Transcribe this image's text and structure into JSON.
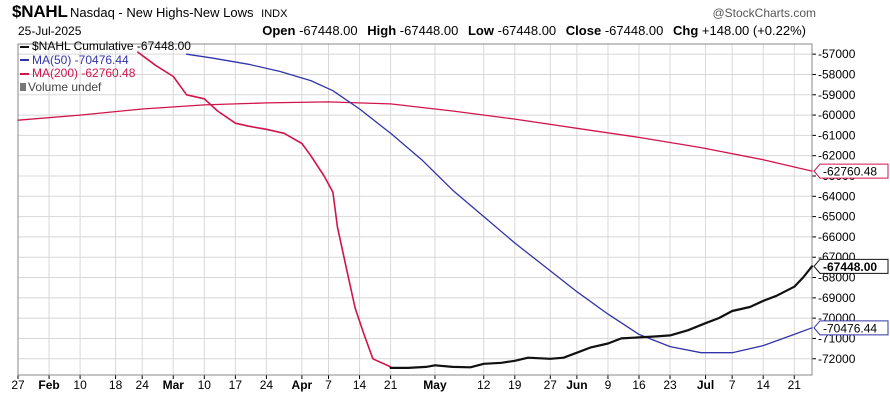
{
  "header": {
    "symbol": "$NAHL",
    "description": "Nasdaq - New Highs-New Lows",
    "exchange": "INDX",
    "brand": "@StockCharts.com",
    "date": "25-Jul-2025",
    "open_label": "Open",
    "open_value": "-67448.00",
    "high_label": "High",
    "high_value": "-67448.00",
    "low_label": "Low",
    "low_value": "-67448.00",
    "close_label": "Close",
    "close_value": "-67448.00",
    "chg_label": "Chg",
    "chg_value": "+148.00 (+0.22%)"
  },
  "legend": {
    "price": "$NAHL Cumulative -67448.00",
    "ma50": "MA(50) -70476.44",
    "ma200": "MA(200) -62760.48",
    "volume": "Volume undef"
  },
  "colors": {
    "price": "#111111",
    "ma50": "#3333aa",
    "ma200": "#d0144c",
    "grid": "#d8d8d8",
    "axis_text": "#000000"
  },
  "chart_data": {
    "type": "line",
    "x_start": "2025-01-27",
    "x_end": "2025-07-25",
    "ylim": [
      -72800,
      -56500
    ],
    "yticks": [
      -57000,
      -58000,
      -59000,
      -60000,
      -61000,
      -62000,
      -63000,
      -64000,
      -65000,
      -66000,
      -67000,
      -68000,
      -69000,
      -70000,
      -71000,
      -72000
    ],
    "ytick_labels": [
      "-57000",
      "-58000",
      "-59000",
      "-60000",
      "-61000",
      "-62000",
      "-63000",
      "-64000",
      "-65000",
      "-66000",
      "-67000",
      "-68000",
      "-69000",
      "-70000",
      "-71000",
      "-72000"
    ],
    "xticks": [
      {
        "date": "2025-01-27",
        "label": "27",
        "bold": false
      },
      {
        "date": "2025-02-03",
        "label": "Feb",
        "bold": true
      },
      {
        "date": "2025-02-10",
        "label": "10",
        "bold": false
      },
      {
        "date": "2025-02-18",
        "label": "18",
        "bold": false
      },
      {
        "date": "2025-02-24",
        "label": "24",
        "bold": false
      },
      {
        "date": "2025-03-03",
        "label": "Mar",
        "bold": true
      },
      {
        "date": "2025-03-10",
        "label": "10",
        "bold": false
      },
      {
        "date": "2025-03-17",
        "label": "17",
        "bold": false
      },
      {
        "date": "2025-03-24",
        "label": "24",
        "bold": false
      },
      {
        "date": "2025-04-01",
        "label": "Apr",
        "bold": true
      },
      {
        "date": "2025-04-07",
        "label": "7",
        "bold": false
      },
      {
        "date": "2025-04-14",
        "label": "14",
        "bold": false
      },
      {
        "date": "2025-04-21",
        "label": "21",
        "bold": false
      },
      {
        "date": "2025-05-01",
        "label": "May",
        "bold": true
      },
      {
        "date": "2025-05-12",
        "label": "12",
        "bold": false
      },
      {
        "date": "2025-05-19",
        "label": "19",
        "bold": false
      },
      {
        "date": "2025-05-27",
        "label": "27",
        "bold": false
      },
      {
        "date": "2025-06-02",
        "label": "Jun",
        "bold": true
      },
      {
        "date": "2025-06-09",
        "label": "9",
        "bold": false
      },
      {
        "date": "2025-06-16",
        "label": "16",
        "bold": false
      },
      {
        "date": "2025-06-23",
        "label": "23",
        "bold": false
      },
      {
        "date": "2025-07-01",
        "label": "Jul",
        "bold": true
      },
      {
        "date": "2025-07-07",
        "label": "7",
        "bold": false
      },
      {
        "date": "2025-07-14",
        "label": "14",
        "bold": false
      },
      {
        "date": "2025-07-21",
        "label": "21",
        "bold": false
      }
    ],
    "grid": true,
    "series": [
      {
        "name": "$NAHL Cumulative",
        "key": "price",
        "points": [
          [
            "2025-04-21",
            -72450
          ],
          [
            "2025-04-25",
            -72450
          ],
          [
            "2025-04-29",
            -72400
          ],
          [
            "2025-05-01",
            -72320
          ],
          [
            "2025-05-05",
            -72400
          ],
          [
            "2025-05-09",
            -72420
          ],
          [
            "2025-05-12",
            -72250
          ],
          [
            "2025-05-16",
            -72200
          ],
          [
            "2025-05-19",
            -72100
          ],
          [
            "2025-05-22",
            -71950
          ],
          [
            "2025-05-27",
            -72000
          ],
          [
            "2025-05-30",
            -71950
          ],
          [
            "2025-06-02",
            -71700
          ],
          [
            "2025-06-05",
            -71450
          ],
          [
            "2025-06-09",
            -71250
          ],
          [
            "2025-06-12",
            -71000
          ],
          [
            "2025-06-16",
            -70950
          ],
          [
            "2025-06-20",
            -70900
          ],
          [
            "2025-06-23",
            -70850
          ],
          [
            "2025-06-27",
            -70600
          ],
          [
            "2025-07-01",
            -70250
          ],
          [
            "2025-07-04",
            -70000
          ],
          [
            "2025-07-07",
            -69650
          ],
          [
            "2025-07-11",
            -69450
          ],
          [
            "2025-07-14",
            -69150
          ],
          [
            "2025-07-17",
            -68900
          ],
          [
            "2025-07-21",
            -68450
          ],
          [
            "2025-07-23",
            -68000
          ],
          [
            "2025-07-25",
            -67448
          ]
        ]
      },
      {
        "name": "MA(200)",
        "key": "ma200_early",
        "points": [
          [
            "2025-02-23",
            -56900
          ],
          [
            "2025-02-27",
            -57550
          ],
          [
            "2025-03-03",
            -58100
          ],
          [
            "2025-03-06",
            -59000
          ],
          [
            "2025-03-10",
            -59200
          ],
          [
            "2025-03-13",
            -59800
          ],
          [
            "2025-03-17",
            -60400
          ],
          [
            "2025-03-20",
            -60550
          ],
          [
            "2025-03-24",
            -60700
          ],
          [
            "2025-03-28",
            -60900
          ],
          [
            "2025-04-01",
            -61400
          ],
          [
            "2025-04-03",
            -62000
          ],
          [
            "2025-04-06",
            -63000
          ],
          [
            "2025-04-08",
            -63800
          ],
          [
            "2025-04-09",
            -65500
          ],
          [
            "2025-04-11",
            -67500
          ],
          [
            "2025-04-13",
            -69500
          ],
          [
            "2025-04-15",
            -70800
          ],
          [
            "2025-04-17",
            -72000
          ],
          [
            "2025-04-21",
            -72400
          ]
        ]
      },
      {
        "name": "MA(50)",
        "key": "ma50",
        "points": [
          [
            "2025-03-06",
            -57000
          ],
          [
            "2025-03-12",
            -57200
          ],
          [
            "2025-03-20",
            -57500
          ],
          [
            "2025-03-27",
            -57850
          ],
          [
            "2025-04-03",
            -58300
          ],
          [
            "2025-04-08",
            -58800
          ],
          [
            "2025-04-14",
            -59700
          ],
          [
            "2025-04-21",
            -60900
          ],
          [
            "2025-04-28",
            -62200
          ],
          [
            "2025-05-05",
            -63700
          ],
          [
            "2025-05-12",
            -65000
          ],
          [
            "2025-05-19",
            -66300
          ],
          [
            "2025-05-26",
            -67500
          ],
          [
            "2025-06-02",
            -68700
          ],
          [
            "2025-06-09",
            -69800
          ],
          [
            "2025-06-16",
            -70800
          ],
          [
            "2025-06-23",
            -71400
          ],
          [
            "2025-06-30",
            -71700
          ],
          [
            "2025-07-07",
            -71700
          ],
          [
            "2025-07-14",
            -71350
          ],
          [
            "2025-07-21",
            -70800
          ],
          [
            "2025-07-25",
            -70476
          ]
        ]
      },
      {
        "name": "MA(200)",
        "key": "ma200",
        "points": [
          [
            "2025-01-27",
            -60250
          ],
          [
            "2025-02-10",
            -60000
          ],
          [
            "2025-02-24",
            -59700
          ],
          [
            "2025-03-10",
            -59500
          ],
          [
            "2025-03-24",
            -59400
          ],
          [
            "2025-04-07",
            -59350
          ],
          [
            "2025-04-21",
            -59450
          ],
          [
            "2025-05-05",
            -59800
          ],
          [
            "2025-05-19",
            -60200
          ],
          [
            "2025-06-02",
            -60650
          ],
          [
            "2025-06-16",
            -61100
          ],
          [
            "2025-06-30",
            -61600
          ],
          [
            "2025-07-14",
            -62200
          ],
          [
            "2025-07-25",
            -62760
          ]
        ]
      }
    ],
    "right_tags": [
      {
        "key": "ma200",
        "label": "-62760.48",
        "value": -62760.48
      },
      {
        "key": "price",
        "label": "-67448.00",
        "value": -67448
      },
      {
        "key": "ma50",
        "label": "-70476.44",
        "value": -70476.44
      }
    ]
  }
}
